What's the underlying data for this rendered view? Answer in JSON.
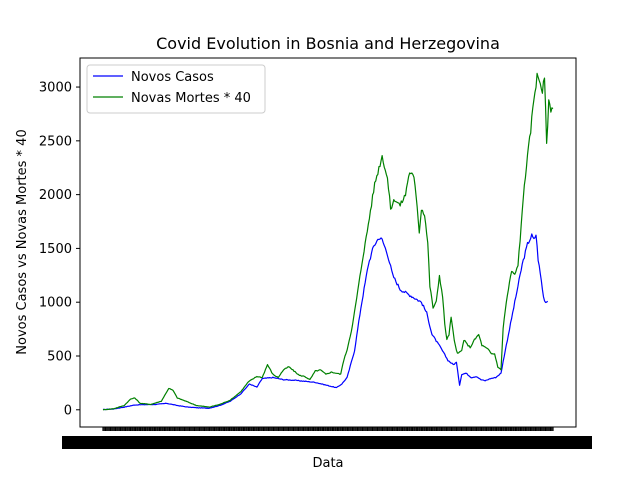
{
  "chart_data": {
    "type": "line",
    "title": "Covid Evolution in Bosnia and Herzegovina",
    "xlabel": "Data",
    "ylabel": "Novos Casos vs Novas Mortes * 40",
    "ylim": [
      -160,
      3270
    ],
    "yticks": [
      0,
      500,
      1000,
      1500,
      2000,
      2500,
      3000
    ],
    "grid": false,
    "legend_position": "top-left",
    "n_points": 360,
    "series": [
      {
        "name": "Novos Casos",
        "color": "#0000ff",
        "keyframes": [
          [
            0,
            2
          ],
          [
            10,
            8
          ],
          [
            20,
            25
          ],
          [
            30,
            45
          ],
          [
            40,
            48
          ],
          [
            50,
            50
          ],
          [
            60,
            60
          ],
          [
            70,
            40
          ],
          [
            80,
            25
          ],
          [
            90,
            18
          ],
          [
            100,
            15
          ],
          [
            110,
            40
          ],
          [
            120,
            80
          ],
          [
            130,
            150
          ],
          [
            138,
            240
          ],
          [
            145,
            210
          ],
          [
            150,
            290
          ],
          [
            160,
            300
          ],
          [
            170,
            280
          ],
          [
            180,
            275
          ],
          [
            190,
            265
          ],
          [
            200,
            255
          ],
          [
            210,
            230
          ],
          [
            220,
            205
          ],
          [
            225,
            240
          ],
          [
            230,
            300
          ],
          [
            237,
            550
          ],
          [
            243,
            950
          ],
          [
            250,
            1350
          ],
          [
            255,
            1520
          ],
          [
            260,
            1600
          ],
          [
            263,
            1580
          ],
          [
            268,
            1450
          ],
          [
            273,
            1250
          ],
          [
            280,
            1120
          ],
          [
            290,
            1060
          ],
          [
            300,
            1000
          ],
          [
            305,
            900
          ],
          [
            310,
            700
          ],
          [
            318,
            580
          ],
          [
            325,
            460
          ],
          [
            330,
            420
          ],
          [
            333,
            440
          ],
          [
            336,
            230
          ],
          [
            338,
            330
          ],
          [
            342,
            340
          ],
          [
            347,
            300
          ],
          [
            352,
            310
          ],
          [
            356,
            280
          ],
          [
            360,
            270
          ],
          [
            365,
            290
          ],
          [
            370,
            300
          ],
          [
            375,
            340
          ],
          [
            378,
            500
          ],
          [
            382,
            700
          ],
          [
            386,
            900
          ],
          [
            390,
            1100
          ],
          [
            395,
            1350
          ],
          [
            400,
            1540
          ],
          [
            404,
            1620
          ],
          [
            406,
            1580
          ],
          [
            408,
            1630
          ],
          [
            410,
            1400
          ],
          [
            413,
            1200
          ],
          [
            415,
            1050
          ],
          [
            417,
            1000
          ],
          [
            419,
            1010
          ]
        ]
      },
      {
        "name": "Novas Mortes * 40",
        "color": "#008000",
        "keyframes": [
          [
            0,
            0
          ],
          [
            10,
            10
          ],
          [
            20,
            40
          ],
          [
            26,
            100
          ],
          [
            30,
            110
          ],
          [
            35,
            60
          ],
          [
            45,
            50
          ],
          [
            55,
            80
          ],
          [
            62,
            200
          ],
          [
            66,
            180
          ],
          [
            70,
            110
          ],
          [
            78,
            80
          ],
          [
            88,
            40
          ],
          [
            100,
            25
          ],
          [
            110,
            50
          ],
          [
            120,
            90
          ],
          [
            130,
            170
          ],
          [
            137,
            260
          ],
          [
            145,
            310
          ],
          [
            150,
            300
          ],
          [
            155,
            420
          ],
          [
            160,
            330
          ],
          [
            165,
            300
          ],
          [
            170,
            370
          ],
          [
            175,
            400
          ],
          [
            180,
            360
          ],
          [
            185,
            320
          ],
          [
            190,
            310
          ],
          [
            195,
            280
          ],
          [
            200,
            360
          ],
          [
            205,
            370
          ],
          [
            210,
            330
          ],
          [
            215,
            350
          ],
          [
            220,
            340
          ],
          [
            224,
            330
          ],
          [
            226,
            430
          ],
          [
            230,
            560
          ],
          [
            235,
            780
          ],
          [
            240,
            1100
          ],
          [
            245,
            1430
          ],
          [
            248,
            1600
          ],
          [
            252,
            1850
          ],
          [
            256,
            2100
          ],
          [
            260,
            2250
          ],
          [
            263,
            2360
          ],
          [
            265,
            2280
          ],
          [
            268,
            2150
          ],
          [
            271,
            1870
          ],
          [
            275,
            1960
          ],
          [
            280,
            1900
          ],
          [
            285,
            2000
          ],
          [
            288,
            2180
          ],
          [
            290,
            2210
          ],
          [
            293,
            2150
          ],
          [
            296,
            1900
          ],
          [
            298,
            1650
          ],
          [
            300,
            1870
          ],
          [
            303,
            1820
          ],
          [
            306,
            1550
          ],
          [
            308,
            1150
          ],
          [
            311,
            950
          ],
          [
            314,
            1000
          ],
          [
            317,
            1250
          ],
          [
            320,
            1050
          ],
          [
            322,
            800
          ],
          [
            324,
            650
          ],
          [
            326,
            700
          ],
          [
            328,
            860
          ],
          [
            331,
            640
          ],
          [
            334,
            520
          ],
          [
            338,
            550
          ],
          [
            340,
            650
          ],
          [
            343,
            610
          ],
          [
            346,
            580
          ],
          [
            350,
            650
          ],
          [
            354,
            700
          ],
          [
            357,
            600
          ],
          [
            360,
            580
          ],
          [
            363,
            560
          ],
          [
            366,
            520
          ],
          [
            369,
            520
          ],
          [
            372,
            400
          ],
          [
            375,
            370
          ],
          [
            377,
            760
          ],
          [
            380,
            1000
          ],
          [
            383,
            1180
          ],
          [
            385,
            1290
          ],
          [
            388,
            1250
          ],
          [
            391,
            1350
          ],
          [
            394,
            1700
          ],
          [
            397,
            2100
          ],
          [
            400,
            2350
          ],
          [
            403,
            2600
          ],
          [
            406,
            2900
          ],
          [
            409,
            3100
          ],
          [
            412,
            3050
          ],
          [
            414,
            2960
          ],
          [
            416,
            3080
          ],
          [
            418,
            2490
          ],
          [
            420,
            2850
          ],
          [
            422,
            2800
          ],
          [
            424,
            2800
          ]
        ]
      }
    ]
  }
}
